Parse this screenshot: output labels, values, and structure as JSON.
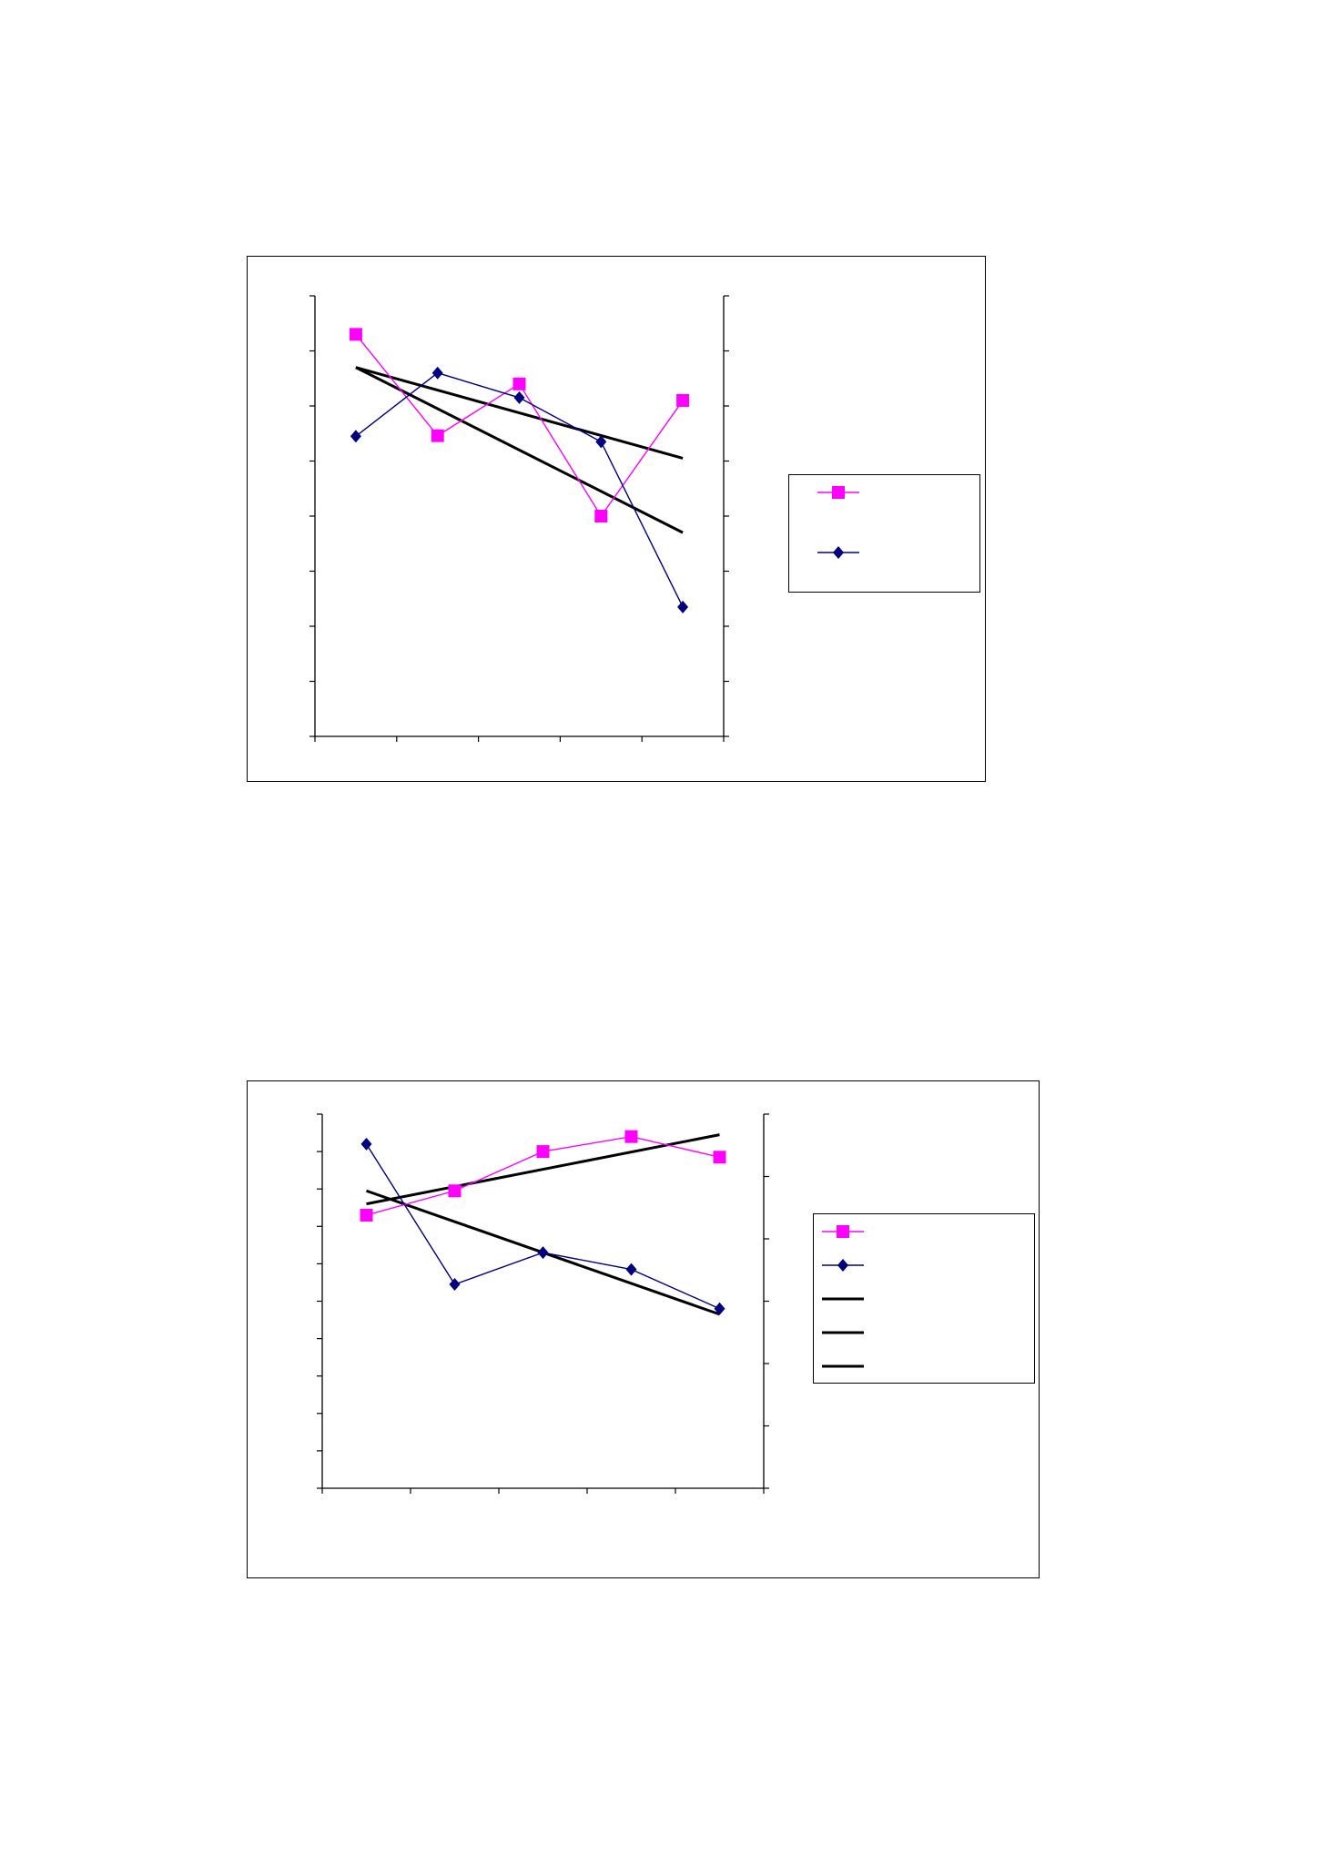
{
  "colors": {
    "series_a": "#ff00ff",
    "series_b": "#000080",
    "trend": "#000000",
    "axis": "#000000"
  },
  "chart_data": [
    {
      "type": "line",
      "title": "",
      "xlabel": "",
      "ylabel": "",
      "x": [
        1,
        2,
        3,
        4,
        5
      ],
      "xlim": [
        0.5,
        5.5
      ],
      "ylim": [
        0,
        8
      ],
      "secondary_ylim": [
        0,
        8
      ],
      "grid": false,
      "legend_position": "right",
      "series": [
        {
          "values": [
            7.3,
            5.46,
            6.4,
            4.0,
            6.1
          ],
          "color": "#ff00ff",
          "marker": "square"
        },
        {
          "values": [
            5.45,
            6.6,
            6.15,
            5.35,
            2.35
          ],
          "color": "#000080",
          "marker": "diamond"
        }
      ],
      "trendlines": [
        {
          "from": [
            1,
            6.7
          ],
          "to": [
            5,
            5.05
          ]
        },
        {
          "from": [
            1,
            6.7
          ],
          "to": [
            5,
            3.7
          ]
        }
      ]
    },
    {
      "type": "line",
      "title": "",
      "xlabel": "",
      "ylabel": "",
      "x": [
        1,
        2,
        3,
        4,
        5
      ],
      "xlim": [
        0.5,
        5.5
      ],
      "ylim": [
        0,
        10
      ],
      "secondary_ylim": [
        0,
        6
      ],
      "grid": false,
      "legend_position": "right",
      "series": [
        {
          "values": [
            7.3,
            7.95,
            9.0,
            9.4,
            8.85
          ],
          "color": "#ff00ff",
          "marker": "square"
        },
        {
          "values": [
            9.2,
            5.45,
            6.3,
            5.85,
            4.8
          ],
          "color": "#000080",
          "marker": "diamond"
        }
      ],
      "trendlines": [
        {
          "from": [
            1,
            7.6
          ],
          "to": [
            5,
            9.45
          ]
        },
        {
          "from": [
            1,
            7.95
          ],
          "to": [
            5,
            4.65
          ]
        }
      ],
      "legend_extra_lines": 3
    }
  ]
}
